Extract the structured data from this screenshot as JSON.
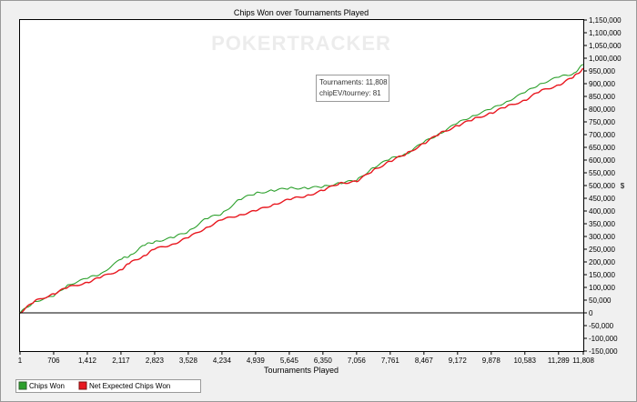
{
  "chart_data": {
    "type": "line",
    "title": "Chips Won over Tournaments Played",
    "xlabel": "Tournaments Played",
    "ylabel": "$",
    "watermark": "POKERTRACKER",
    "xlim": [
      1,
      11808
    ],
    "ylim": [
      -150000,
      1150000
    ],
    "x_ticks": [
      1,
      706,
      1412,
      2117,
      2823,
      3528,
      4234,
      4939,
      5645,
      6350,
      7056,
      7761,
      8467,
      9172,
      9878,
      10583,
      11289,
      11808
    ],
    "x_tick_labels": [
      "1",
      "706",
      "1,412",
      "2,117",
      "2,823",
      "3,528",
      "4,234",
      "4,939",
      "5,645",
      "6,350",
      "7,056",
      "7,761",
      "8,467",
      "9,172",
      "9,878",
      "10,583",
      "11,289",
      "11,808"
    ],
    "y_ticks": [
      -150000,
      -100000,
      -50000,
      0,
      50000,
      100000,
      150000,
      200000,
      250000,
      300000,
      350000,
      400000,
      450000,
      500000,
      550000,
      600000,
      650000,
      700000,
      750000,
      800000,
      850000,
      900000,
      950000,
      1000000,
      1050000,
      1100000,
      1150000
    ],
    "y_tick_labels": [
      "-150,000",
      "-100,000",
      "-50,000",
      "0",
      "50,000",
      "100,000",
      "150,000",
      "200,000",
      "250,000",
      "300,000",
      "350,000",
      "400,000",
      "450,000",
      "500,000",
      "550,000",
      "600,000",
      "650,000",
      "700,000",
      "750,000",
      "800,000",
      "850,000",
      "900,000",
      "950,000",
      "1,000,000",
      "1,050,000",
      "1,100,000",
      "1,150,000"
    ],
    "grid": false,
    "legend_position": "bottom-left",
    "annotation": {
      "lines": [
        "Tournaments: 11,808",
        "chipEV/tourney: 81"
      ]
    },
    "series": [
      {
        "name": "Chips Won",
        "color": "#2ca02c",
        "x": [
          1,
          300,
          706,
          1000,
          1412,
          1700,
          2117,
          2300,
          2600,
          2823,
          3200,
          3528,
          3900,
          4234,
          4600,
          4939,
          5300,
          5645,
          6000,
          6350,
          6700,
          7056,
          7400,
          7761,
          8100,
          8467,
          8800,
          9172,
          9500,
          9878,
          10200,
          10583,
          10900,
          11289,
          11600,
          11808
        ],
        "y": [
          0,
          45000,
          65000,
          110000,
          135000,
          155000,
          210000,
          225000,
          265000,
          280000,
          295000,
          320000,
          370000,
          390000,
          445000,
          470000,
          480000,
          490000,
          490000,
          495000,
          510000,
          520000,
          570000,
          605000,
          625000,
          670000,
          705000,
          745000,
          775000,
          800000,
          830000,
          865000,
          900000,
          925000,
          940000,
          975000
        ]
      },
      {
        "name": "Net Expected Chips Won",
        "color": "#e8171f",
        "x": [
          1,
          300,
          706,
          1000,
          1412,
          1700,
          2117,
          2300,
          2600,
          2823,
          3200,
          3528,
          3900,
          4234,
          4600,
          4939,
          5300,
          5645,
          6000,
          6350,
          6700,
          7056,
          7400,
          7761,
          8100,
          8467,
          8800,
          9172,
          9500,
          9878,
          10200,
          10583,
          10900,
          11289,
          11600,
          11808
        ],
        "y": [
          0,
          45000,
          75000,
          100000,
          120000,
          140000,
          170000,
          195000,
          225000,
          250000,
          270000,
          295000,
          335000,
          365000,
          385000,
          400000,
          425000,
          445000,
          460000,
          480000,
          510000,
          515000,
          560000,
          595000,
          625000,
          665000,
          705000,
          735000,
          760000,
          785000,
          810000,
          835000,
          870000,
          895000,
          925000,
          960000
        ]
      }
    ]
  }
}
